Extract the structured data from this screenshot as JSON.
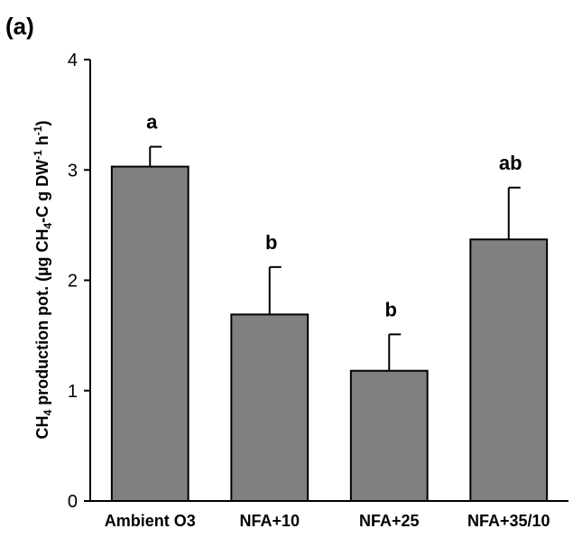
{
  "panel_label": "(a)",
  "chart_data": {
    "type": "bar",
    "categories": [
      "Ambient O3",
      "NFA+10",
      "NFA+25",
      "NFA+35/10"
    ],
    "values": [
      3.03,
      1.69,
      1.18,
      2.37
    ],
    "errors": [
      0.18,
      0.43,
      0.33,
      0.47
    ],
    "significance": [
      "a",
      "b",
      "b",
      "ab"
    ],
    "title": "",
    "xlabel": "",
    "ylabel_parts": {
      "p1": "CH",
      "s1": "4",
      "p2": " production pot. (µg CH",
      "s2": "4",
      "p3": "-C g DW",
      "s3": "-1",
      "p4": " h",
      "s4": "-1",
      "p5": ")"
    },
    "ylim": [
      0,
      4
    ],
    "yticks": [
      "0",
      "1",
      "2",
      "3",
      "4"
    ],
    "bar_color": "#808080",
    "grid": false
  }
}
